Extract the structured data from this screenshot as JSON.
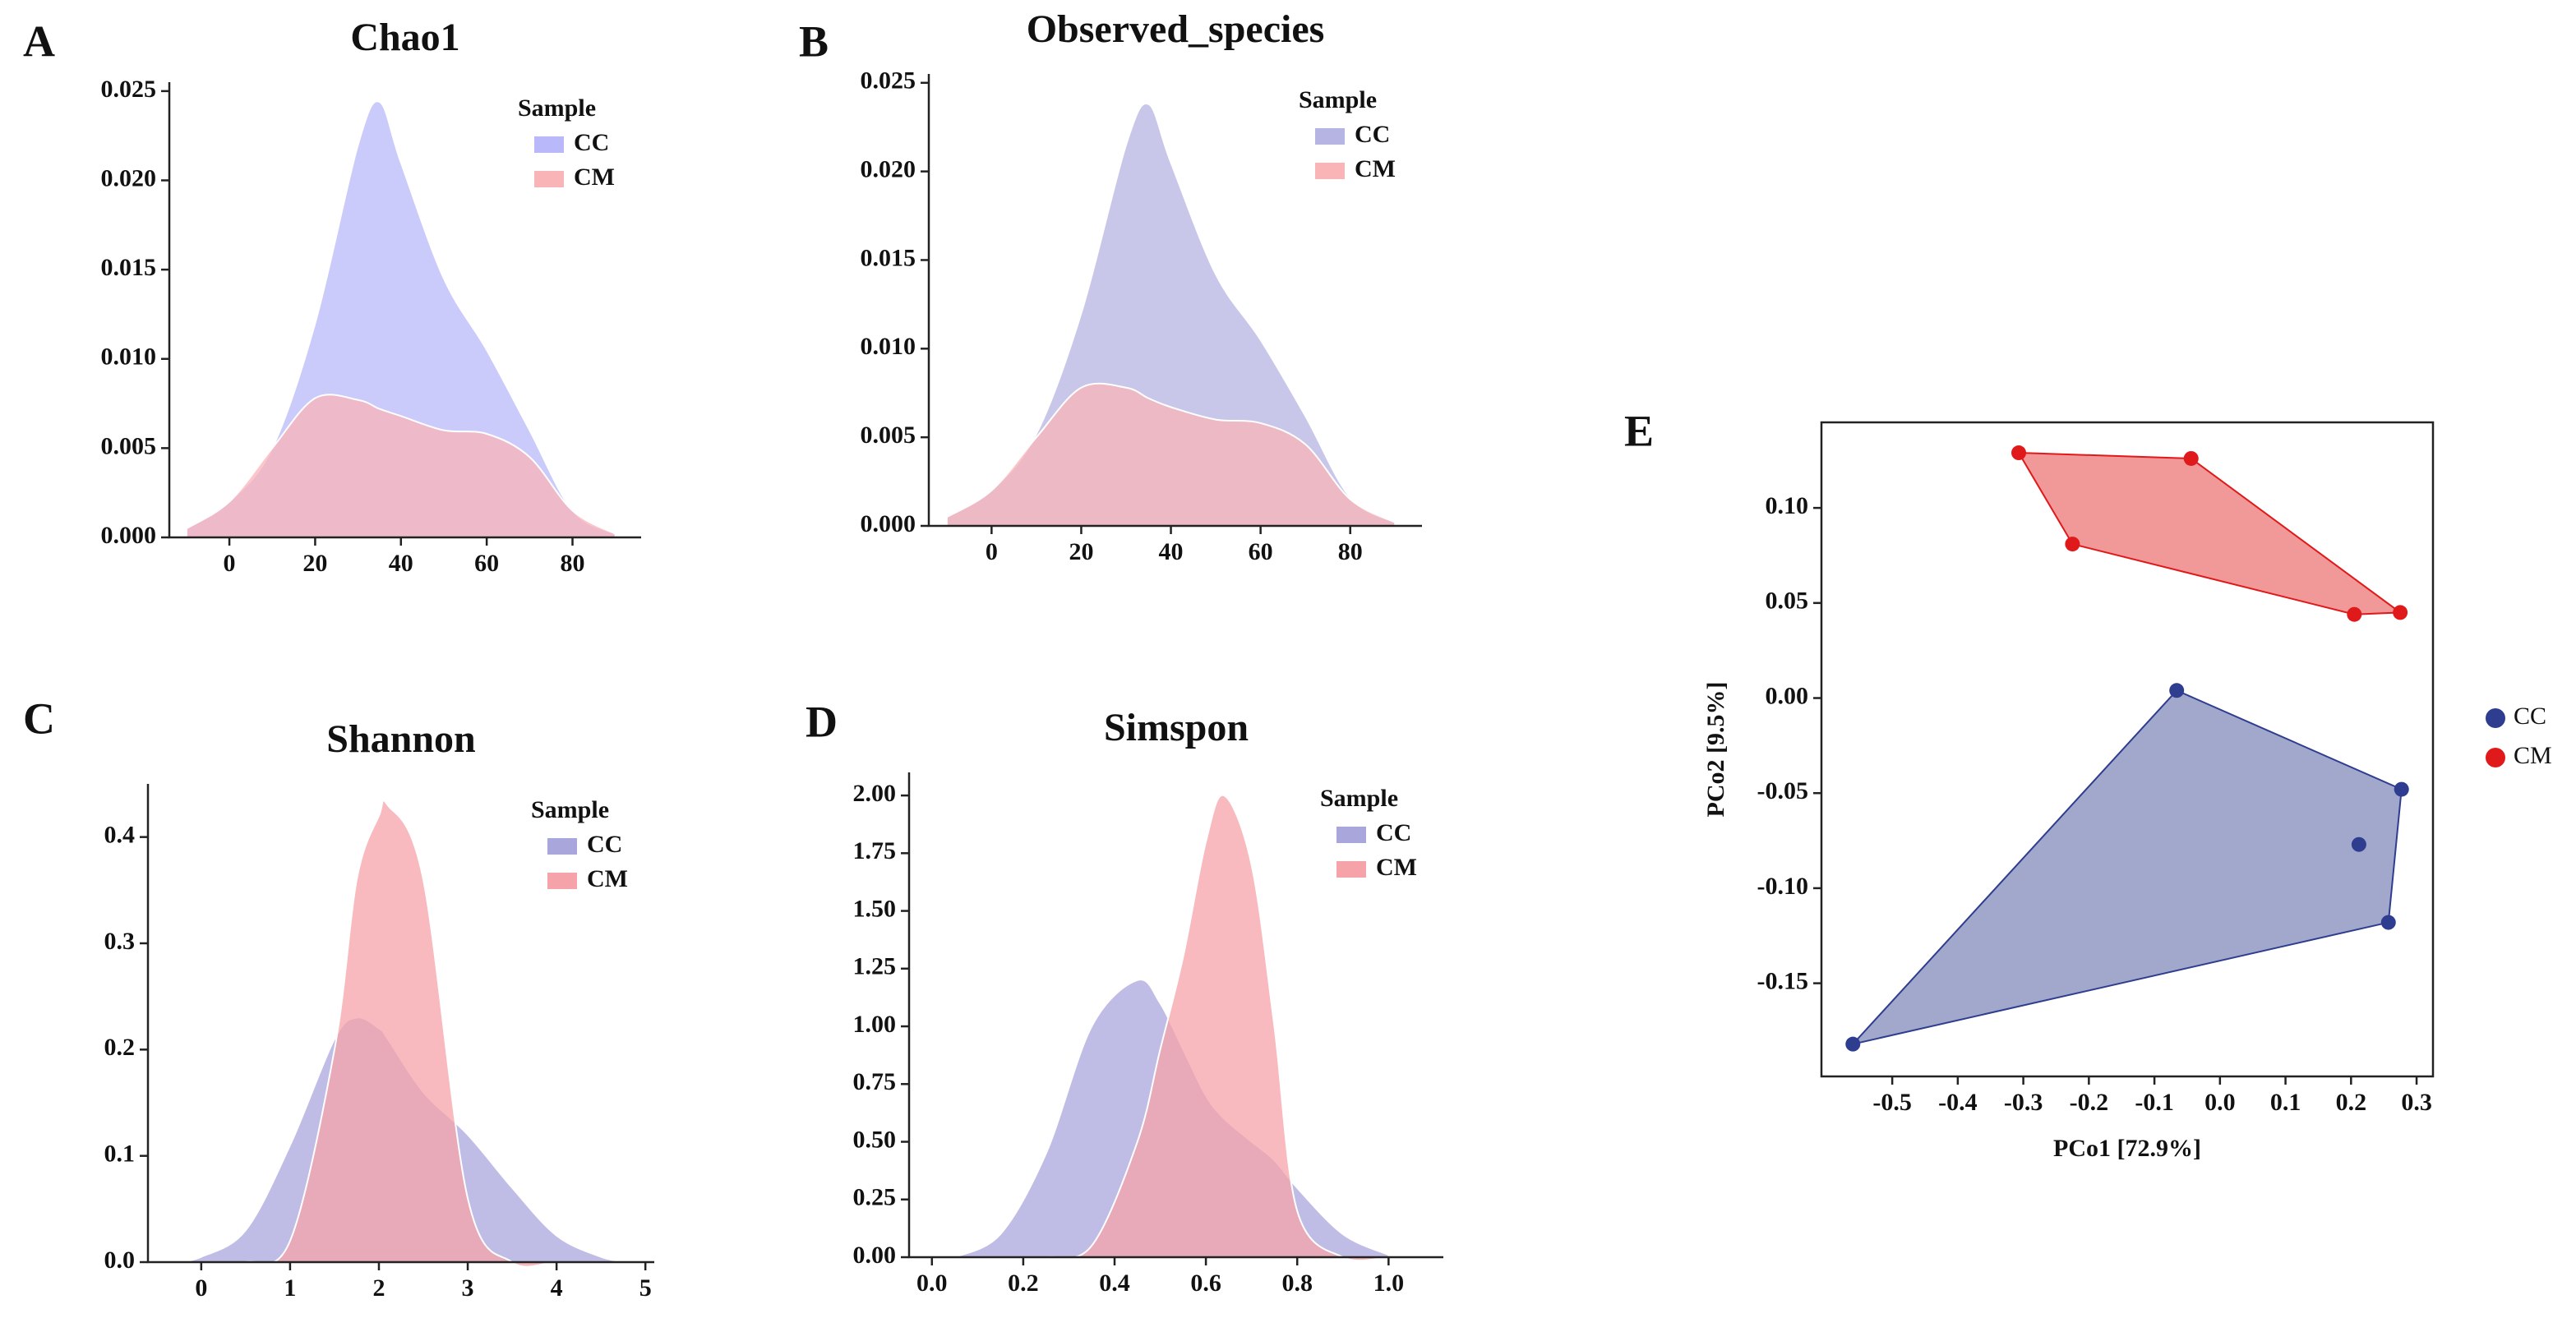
{
  "chart_data": [
    {
      "type": "density",
      "panel_label": "A",
      "title": "Chao1",
      "legend_title": "Sample",
      "x": [
        -10,
        0,
        10,
        20,
        30,
        35,
        40,
        50,
        60,
        70,
        80,
        90
      ],
      "series": [
        {
          "name": "CC",
          "color": "#b8b8fa",
          "values": [
            0.0005,
            0.002,
            0.005,
            0.012,
            0.022,
            0.0244,
            0.021,
            0.0145,
            0.0105,
            0.006,
            0.0015,
            0.0002
          ]
        },
        {
          "name": "CM",
          "color": "#f9b4b8",
          "values": [
            0.0005,
            0.002,
            0.005,
            0.0078,
            0.0077,
            0.0072,
            0.0068,
            0.006,
            0.0058,
            0.0045,
            0.0015,
            0.0002
          ]
        }
      ],
      "xlim": [
        -14,
        96
      ],
      "xticks": [
        0,
        20,
        40,
        60,
        80
      ],
      "ylim": [
        0,
        0.0255
      ],
      "yticks": [
        {
          "value": 0,
          "label": "0.000"
        },
        0.005,
        {
          "value": 0.01,
          "label": "0.010"
        },
        0.015,
        {
          "value": 0.02,
          "label": "0.020"
        },
        0.025
      ]
    },
    {
      "type": "density",
      "panel_label": "B",
      "title": "Observed_species",
      "legend_title": "Sample",
      "x": [
        -10,
        0,
        10,
        20,
        30,
        35,
        40,
        50,
        60,
        70,
        80,
        90
      ],
      "series": [
        {
          "name": "CC",
          "color": "#b6b4e2",
          "values": [
            0.0005,
            0.002,
            0.0052,
            0.012,
            0.0215,
            0.0238,
            0.0205,
            0.0142,
            0.0105,
            0.0062,
            0.0016,
            0.0002
          ]
        },
        {
          "name": "CM",
          "color": "#f9b4b8",
          "values": [
            0.0005,
            0.002,
            0.005,
            0.0078,
            0.0078,
            0.0072,
            0.0067,
            0.006,
            0.0058,
            0.0046,
            0.0015,
            0.0002
          ]
        }
      ],
      "xlim": [
        -14,
        96
      ],
      "xticks": [
        0,
        20,
        40,
        60,
        80
      ],
      "ylim": [
        0,
        0.0255
      ],
      "yticks": [
        {
          "value": 0,
          "label": "0.000"
        },
        0.005,
        {
          "value": 0.01,
          "label": "0.010"
        },
        0.015,
        {
          "value": 0.02,
          "label": "0.020"
        },
        0.025
      ]
    },
    {
      "type": "density",
      "panel_label": "C",
      "title": "Shannon",
      "legend_title": "Sample",
      "x": [
        -0.3,
        0,
        0.5,
        1,
        1.5,
        1.75,
        2,
        2.1,
        2.5,
        3,
        3.5,
        4,
        4.5,
        4.8
      ],
      "series": [
        {
          "name": "CC",
          "color": "#a9a6dc",
          "values": [
            0,
            0.005,
            0.03,
            0.11,
            0.21,
            0.23,
            0.22,
            0.21,
            0.16,
            0.12,
            0.07,
            0.025,
            0.005,
            0
          ]
        },
        {
          "name": "CM",
          "color": "#f5a3a8",
          "values": [
            0,
            0,
            0,
            0.02,
            0.2,
            0.36,
            0.42,
            0.43,
            0.36,
            0.06,
            0,
            0,
            0,
            0
          ]
        }
      ],
      "xlim": [
        -0.6,
        5.1
      ],
      "xticks": [
        0,
        1,
        2,
        3,
        4,
        5
      ],
      "ylim": [
        0,
        0.45
      ],
      "yticks": [
        {
          "value": 0,
          "label": "0.0"
        },
        0.1,
        0.2,
        0.3,
        0.4
      ]
    },
    {
      "type": "density",
      "panel_label": "D",
      "title": "Simspon",
      "legend_title": "Sample",
      "x": [
        0.05,
        0.15,
        0.25,
        0.35,
        0.45,
        0.5,
        0.55,
        0.6,
        0.64,
        0.7,
        0.75,
        0.8,
        0.9,
        1.0
      ],
      "series": [
        {
          "name": "CC",
          "color": "#a9a6dc",
          "values": [
            0,
            0.1,
            0.45,
            1.0,
            1.2,
            1.1,
            0.9,
            0.7,
            0.6,
            0.5,
            0.42,
            0.3,
            0.1,
            0.01
          ]
        },
        {
          "name": "CM",
          "color": "#f5a3a8",
          "values": [
            0,
            0,
            0,
            0.05,
            0.5,
            0.9,
            1.3,
            1.8,
            2.0,
            1.7,
            1.0,
            0.2,
            0,
            0
          ]
        }
      ],
      "xlim": [
        -0.05,
        1.12
      ],
      "xticks": [
        {
          "value": 0,
          "label": "0.0"
        },
        0.2,
        0.4,
        0.6,
        0.8,
        {
          "value": 1,
          "label": "1.0"
        }
      ],
      "ylim": [
        0,
        2.1
      ],
      "yticks": [
        {
          "value": 0,
          "label": "0.00"
        },
        0.25,
        {
          "value": 0.5,
          "label": "0.50"
        },
        0.75,
        {
          "value": 1,
          "label": "1.00"
        },
        1.25,
        {
          "value": 1.5,
          "label": "1.50"
        },
        1.75,
        {
          "value": 2,
          "label": "2.00"
        }
      ]
    },
    {
      "type": "scatter",
      "panel_label": "E",
      "x_label": "PCo1 [72.9%]",
      "y_label": "PCo2 [9.5%]",
      "series": [
        {
          "name": "CC",
          "color": "#2e3d8f",
          "x": [
            -0.066,
            0.277,
            0.212,
            0.257,
            -0.56
          ],
          "values": [
            0.004,
            -0.048,
            -0.077,
            -0.118,
            -0.182
          ]
        },
        {
          "name": "CM",
          "color": "#e01a1a",
          "x": [
            -0.307,
            -0.044,
            -0.225,
            0.205,
            0.275
          ],
          "values": [
            0.129,
            0.126,
            0.081,
            0.044,
            0.045
          ]
        }
      ],
      "xlim": [
        -0.608,
        0.325
      ],
      "xticks": [
        -0.5,
        -0.4,
        -0.3,
        -0.2,
        -0.1,
        {
          "value": 0,
          "label": "0.0"
        },
        0.1,
        0.2,
        0.3
      ],
      "ylim": [
        -0.199,
        0.145
      ],
      "yticks": [
        -0.15,
        {
          "value": -0.1,
          "label": "-0.10"
        },
        -0.05,
        {
          "value": 0,
          "label": "0.00"
        },
        0.05,
        {
          "value": 0.1,
          "label": "0.10"
        }
      ]
    }
  ]
}
